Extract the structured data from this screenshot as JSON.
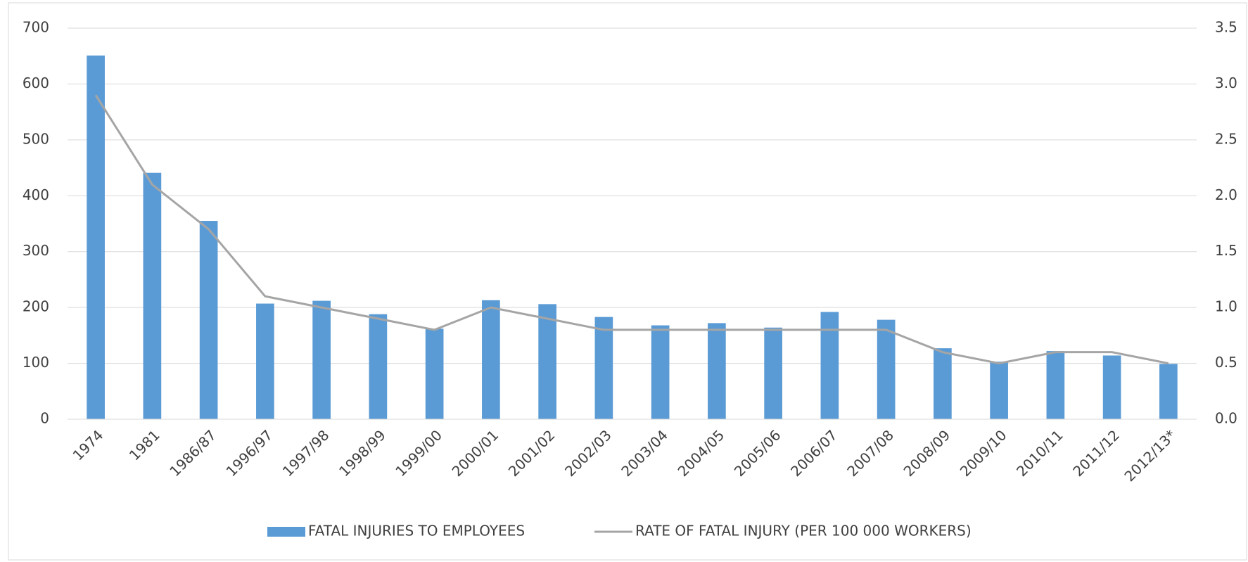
{
  "chart_data": {
    "type": "bar",
    "categories": [
      "1974",
      "1981",
      "1986/87",
      "1996/97",
      "1997/98",
      "1998/99",
      "1999/00",
      "2000/01",
      "2001/02",
      "2002/03",
      "2003/04",
      "2004/05",
      "2005/06",
      "2006/07",
      "2007/08",
      "2008/09",
      "2009/10",
      "2010/11",
      "2011/12",
      "2012/13*"
    ],
    "series": [
      {
        "name": "FATAL INJURIES TO EMPLOYEES",
        "type": "bar",
        "color": "#5b9bd5",
        "values": [
          651,
          441,
          355,
          207,
          212,
          188,
          162,
          213,
          206,
          183,
          168,
          172,
          164,
          192,
          178,
          127,
          103,
          122,
          114,
          99
        ]
      },
      {
        "name": "RATE OF FATAL INJURY (PER 100 000 WORKERS)",
        "type": "line",
        "color": "#a5a5a5",
        "axis": "y2",
        "values": [
          2.9,
          2.1,
          1.7,
          1.1,
          1.0,
          0.9,
          0.8,
          1.0,
          0.9,
          0.8,
          0.8,
          0.8,
          0.8,
          0.8,
          0.8,
          0.6,
          0.5,
          0.6,
          0.6,
          0.5
        ]
      }
    ],
    "ylim": [
      0,
      700
    ],
    "yticks": [
      0,
      100,
      200,
      300,
      400,
      500,
      600,
      700
    ],
    "y2lim": [
      0,
      3.5
    ],
    "y2ticks": [
      {
        "value": 0,
        "label": "0.0"
      },
      0.5,
      {
        "value": 1,
        "label": "1.0"
      },
      1.5,
      {
        "value": 2,
        "label": "2.0"
      },
      2.5,
      {
        "value": 3,
        "label": "3.0"
      },
      3.5
    ],
    "grid": true,
    "legend": "bottom"
  }
}
